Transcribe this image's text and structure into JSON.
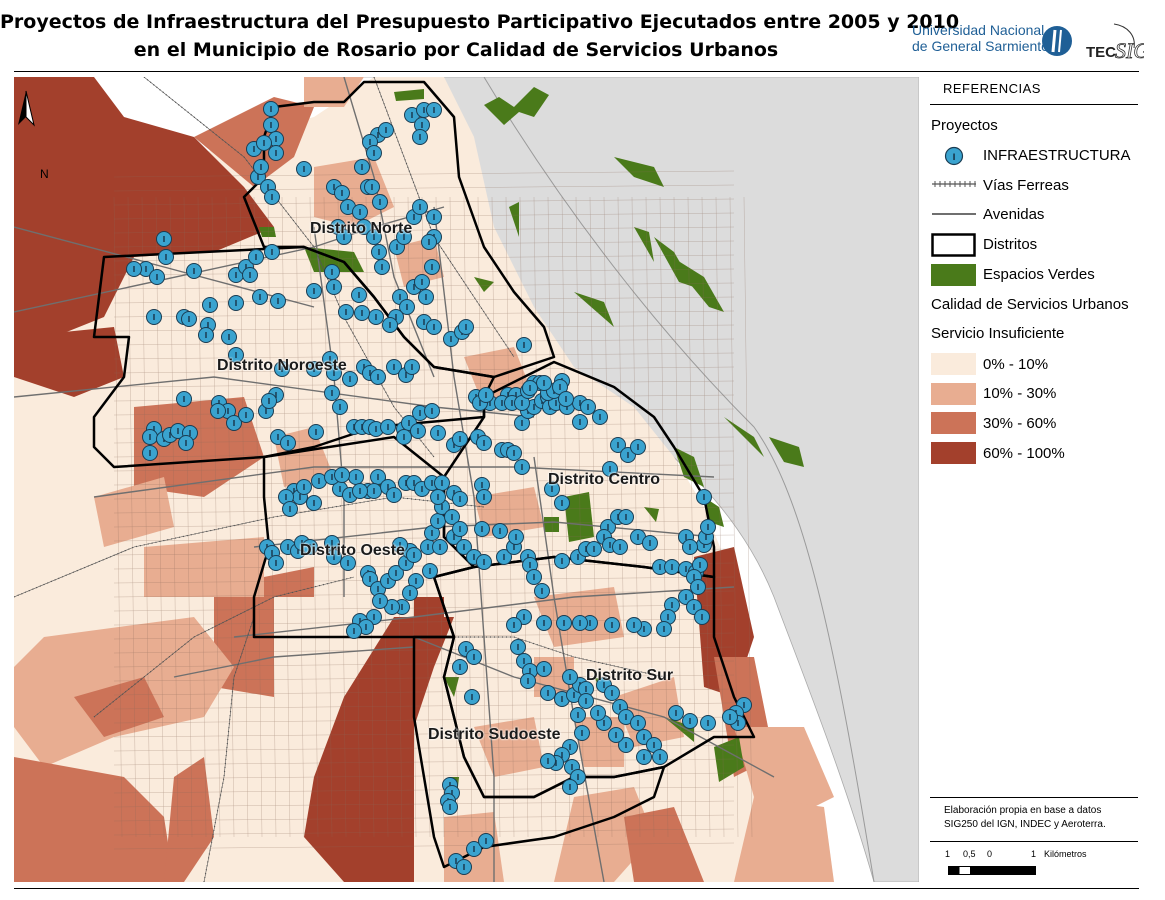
{
  "title": {
    "line1": "Proyectos de Infraestructura del Presupuesto Participativo Ejecutados entre 2005 y 2010",
    "line2": "en el Municipio de Rosario por Calidad de Servicios Urbanos"
  },
  "logos": {
    "ungs_line1": "Universidad Nacional",
    "ungs_line2": "de General Sarmiento",
    "tec": "TEC",
    "sig": "SIG"
  },
  "map": {
    "north_label": "N",
    "districts": [
      {
        "id": "norte",
        "label": "Distrito Norte"
      },
      {
        "id": "noroeste",
        "label": "Distrito Noroeste"
      },
      {
        "id": "centro",
        "label": "Distrito Centro"
      },
      {
        "id": "oeste",
        "label": "Distrito Oeste"
      },
      {
        "id": "sur",
        "label": "Distrito Sur"
      },
      {
        "id": "sudoeste",
        "label": "Distrito Sudoeste"
      }
    ],
    "colors": {
      "class_0_10": "#faebdc",
      "class_10_30": "#e8ad91",
      "class_30_60": "#cc7358",
      "class_60_100": "#a3402c",
      "green": "#4a7a1a",
      "river": "#dcdcdc",
      "marker_fill": "#3aa3cf",
      "marker_stroke": "#1a3c52"
    }
  },
  "legend": {
    "header": "REFERENCIAS",
    "proyectos_title": "Proyectos",
    "items": {
      "infraestructura": "INFRAESTRUCTURA",
      "vias": "Vías Ferreas",
      "avenidas": "Avenidas",
      "distritos": "Distritos",
      "verdes": "Espacios Verdes"
    },
    "calidad_title": "Calidad de Servicios Urbanos",
    "insuf_title": "Servicio Insuficiente",
    "classes": [
      "0% - 10%",
      "10% - 30%",
      "30% - 60%",
      "60% - 100%"
    ],
    "marker_glyph": "I"
  },
  "credits": {
    "line1": "Elaboración propia en base a datos",
    "line2": "SIG250 del IGN, INDEC y Aeroterra.",
    "scale_labels": [
      "1",
      "0,5",
      "0",
      "1",
      "Kilómetros"
    ]
  }
}
